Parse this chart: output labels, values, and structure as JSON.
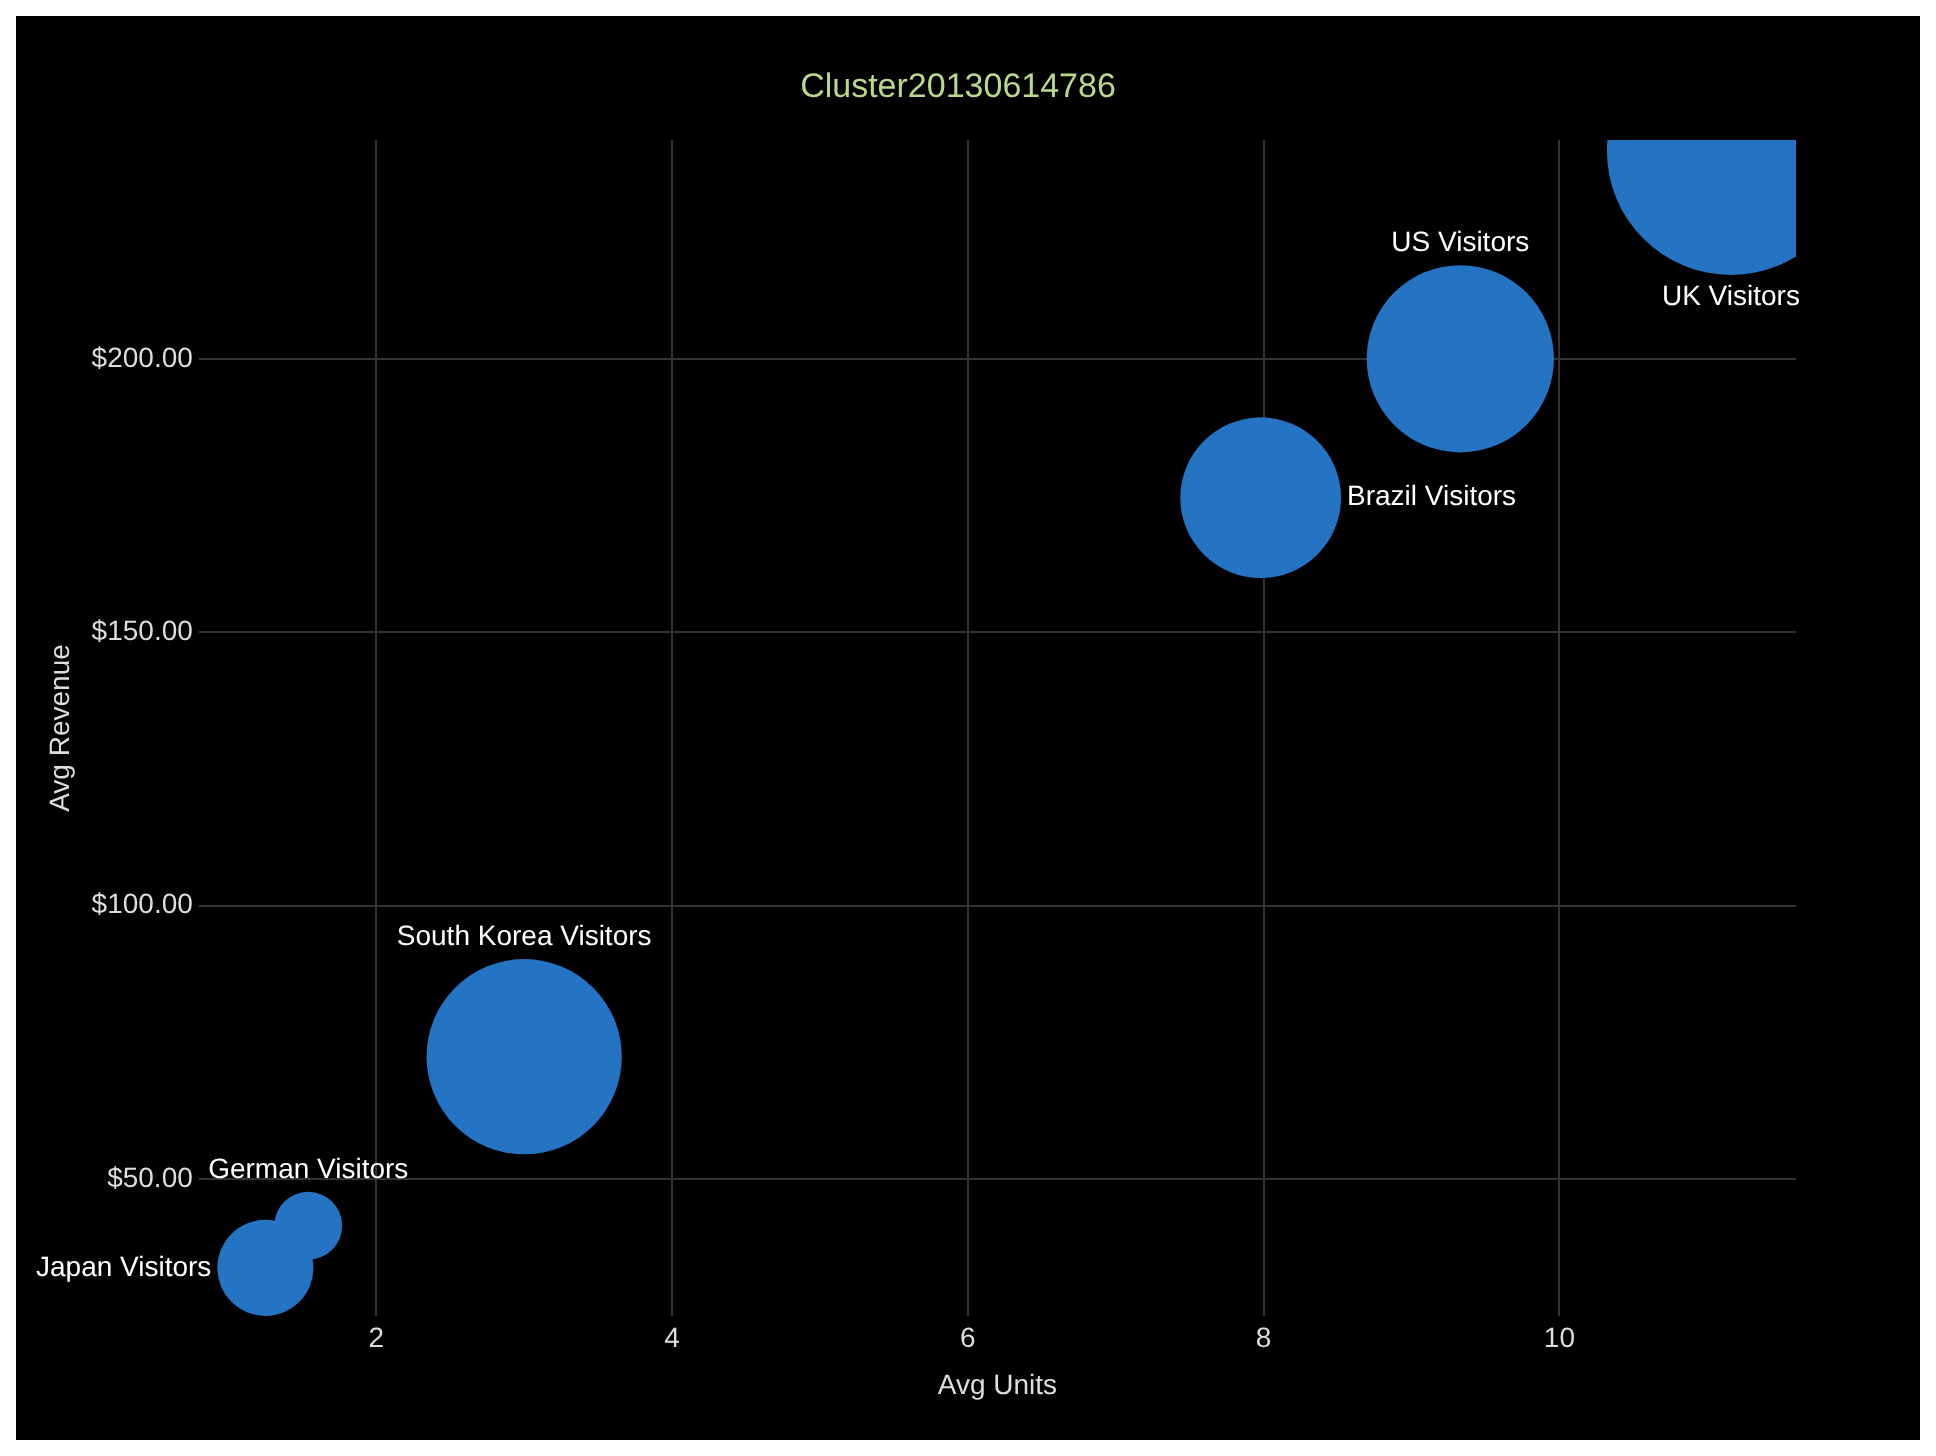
{
  "chart_data": {
    "type": "bubble",
    "title": "Cluster20130614786",
    "xlabel": "Avg Units",
    "ylabel": "Avg Revenue",
    "series": [
      {
        "name": "UK Visitors",
        "color": "#2574c4",
        "x": [
          11.16
        ],
        "values": [
          238
        ],
        "sizes": [
          1
        ]
      },
      {
        "name": "US Visitors",
        "color": "#2574c4",
        "x": [
          9.33
        ],
        "values": [
          200
        ],
        "sizes": [
          0.57
        ]
      },
      {
        "name": "Brazil Visitors",
        "color": "#2574c4",
        "x": [
          7.98
        ],
        "values": [
          174.6
        ],
        "sizes": [
          0.42
        ]
      },
      {
        "name": "South Korea Visitors",
        "color": "#2574c4",
        "x": [
          3.0
        ],
        "values": [
          72.4
        ],
        "sizes": [
          0.62
        ]
      },
      {
        "name": "German Visitors",
        "color": "#2574c4",
        "x": [
          1.54
        ],
        "values": [
          41.5
        ],
        "sizes": [
          0.075
        ]
      },
      {
        "name": "Japan Visitors",
        "color": "#2574c4",
        "x": [
          1.25
        ],
        "values": [
          33.8
        ],
        "sizes": [
          0.15
        ]
      }
    ],
    "xlim": [
      0.8,
      11.6
    ],
    "xticks": [
      2,
      4,
      6,
      8,
      10
    ],
    "ylim": [
      25,
      240
    ],
    "yticks": [
      {
        "value": 50,
        "label": "$50.00"
      },
      {
        "value": 100,
        "label": "$100.00"
      },
      {
        "value": 150,
        "label": "$150.00"
      },
      {
        "value": 200,
        "label": "$200.00"
      }
    ],
    "grid": true,
    "legend": false
  }
}
